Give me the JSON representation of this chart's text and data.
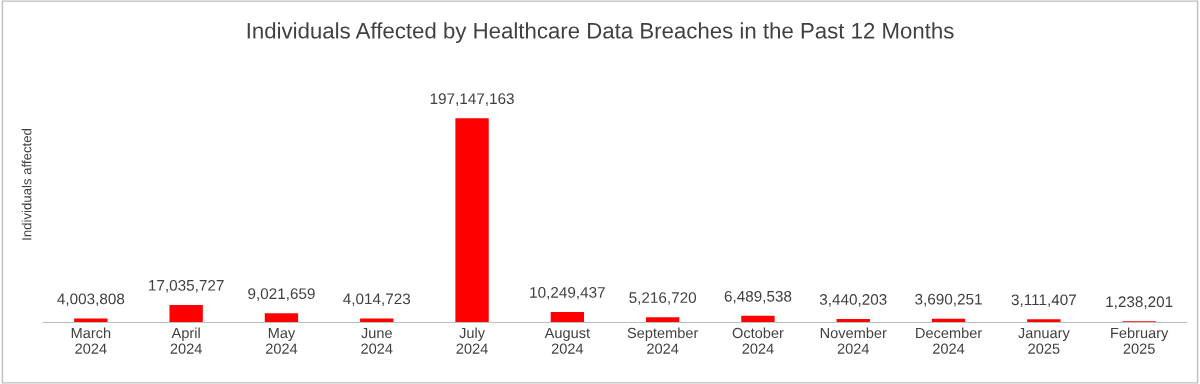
{
  "chart_data": {
    "type": "bar",
    "title": "Individuals Affected by Healthcare Data Breaches in the Past 12 Months",
    "ylabel": "Individuals affected",
    "categories": [
      "March\n2024",
      "April\n2024",
      "May\n2024",
      "June\n2024",
      "July\n2024",
      "August\n2024",
      "September\n2024",
      "October\n2024",
      "November\n2024",
      "December\n2024",
      "January\n2025",
      "February\n2025"
    ],
    "values": [
      4003808,
      17035727,
      9021659,
      4014723,
      197147163,
      10249437,
      5216720,
      6489538,
      3440203,
      3690251,
      3111407,
      1238201
    ],
    "value_labels": [
      "4,003,808",
      "17,035,727",
      "9,021,659",
      "4,014,723",
      "197,147,163",
      "10,249,437",
      "5,216,720",
      "6,489,538",
      "3,440,203",
      "3,690,251",
      "3,111,407",
      "1,238,201"
    ],
    "color": "#ff0000",
    "tick_labels": "x",
    "grid": false,
    "legend": false
  }
}
